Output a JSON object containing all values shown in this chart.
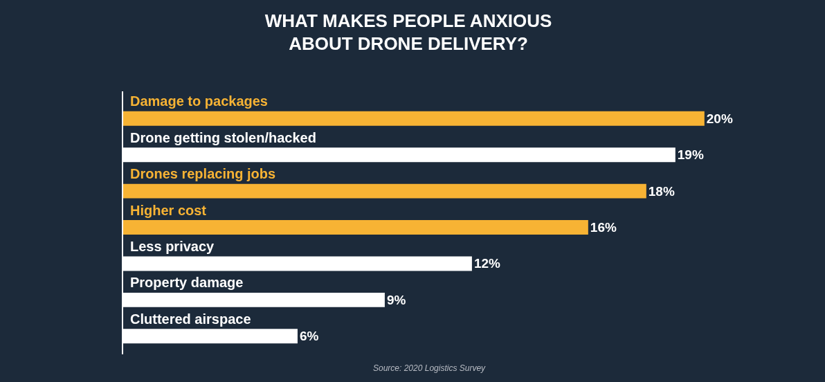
{
  "chart_data": {
    "type": "bar",
    "orientation": "horizontal",
    "title": "WHAT MAKES PEOPLE ANXIOUS\nABOUT DRONE DELIVERY?",
    "categories": [
      "Damage to packages",
      "Drone getting stolen/hacked",
      "Drones replacing jobs",
      "Higher cost",
      "Less privacy",
      "Property damage",
      "Cluttered airspace"
    ],
    "values": [
      20,
      19,
      18,
      16,
      12,
      9,
      6
    ],
    "value_labels": [
      "20%",
      "19%",
      "18%",
      "16%",
      "12%",
      "9%",
      "6%"
    ],
    "colors": [
      "#f7b334",
      "#ffffff",
      "#f7b334",
      "#f7b334",
      "#ffffff",
      "#ffffff",
      "#ffffff"
    ],
    "tick_labels": false,
    "grid": false,
    "legend": false,
    "annotations": [
      "Source: 2020 Logistics Survey"
    ]
  }
}
